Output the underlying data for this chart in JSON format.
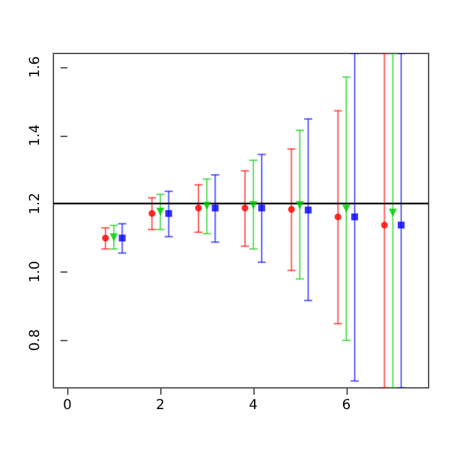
{
  "chart_data": {
    "type": "scatter",
    "xlim": [
      -0.3,
      7.77
    ],
    "ylim": [
      0.66,
      1.64
    ],
    "xticks": [
      0,
      2,
      4,
      6
    ],
    "yticks": [
      0.8,
      {
        "value": 1.0,
        "label": "1.0"
      },
      1.2,
      1.4,
      1.6
    ],
    "ref_lines": [
      {
        "axis": "y",
        "value": 1.2,
        "color": "#000000",
        "line_style": "solid"
      }
    ],
    "series": [
      {
        "color": "#ff0000",
        "marker": "circle",
        "x": [
          0.82,
          1.82,
          2.82,
          3.82,
          4.82,
          5.82,
          6.82
        ],
        "values": [
          1.099,
          1.171,
          1.187,
          1.187,
          1.183,
          1.161,
          1.137
        ],
        "errors": [
          [
            1.067,
            1.129
          ],
          [
            1.124,
            1.217
          ],
          [
            1.116,
            1.255
          ],
          [
            1.075,
            1.296
          ],
          [
            1.004,
            1.36
          ],
          [
            0.848,
            1.472
          ],
          [
            0.66,
            1.64
          ]
        ]
      },
      {
        "color": "#00cc00",
        "marker": "triangle",
        "x": [
          1,
          2,
          3,
          4,
          5,
          6,
          7
        ],
        "values": [
          1.101,
          1.176,
          1.193,
          1.195,
          1.195,
          1.185,
          1.173
        ],
        "errors": [
          [
            1.067,
            1.136
          ],
          [
            1.124,
            1.227
          ],
          [
            1.112,
            1.272
          ],
          [
            1.067,
            1.327
          ],
          [
            0.979,
            1.415
          ],
          [
            0.799,
            1.571
          ],
          [
            0.66,
            1.64
          ]
        ]
      },
      {
        "color": "#0000ff",
        "marker": "square",
        "x": [
          1.18,
          2.18,
          3.18,
          4.18,
          5.18,
          6.18,
          7.18
        ],
        "values": [
          1.099,
          1.171,
          1.187,
          1.187,
          1.181,
          1.161,
          1.137
        ],
        "errors": [
          [
            1.055,
            1.141
          ],
          [
            1.103,
            1.236
          ],
          [
            1.087,
            1.284
          ],
          [
            1.028,
            1.344
          ],
          [
            0.916,
            1.448
          ],
          [
            0.68,
            1.64
          ],
          [
            0.66,
            1.64
          ]
        ]
      }
    ]
  }
}
